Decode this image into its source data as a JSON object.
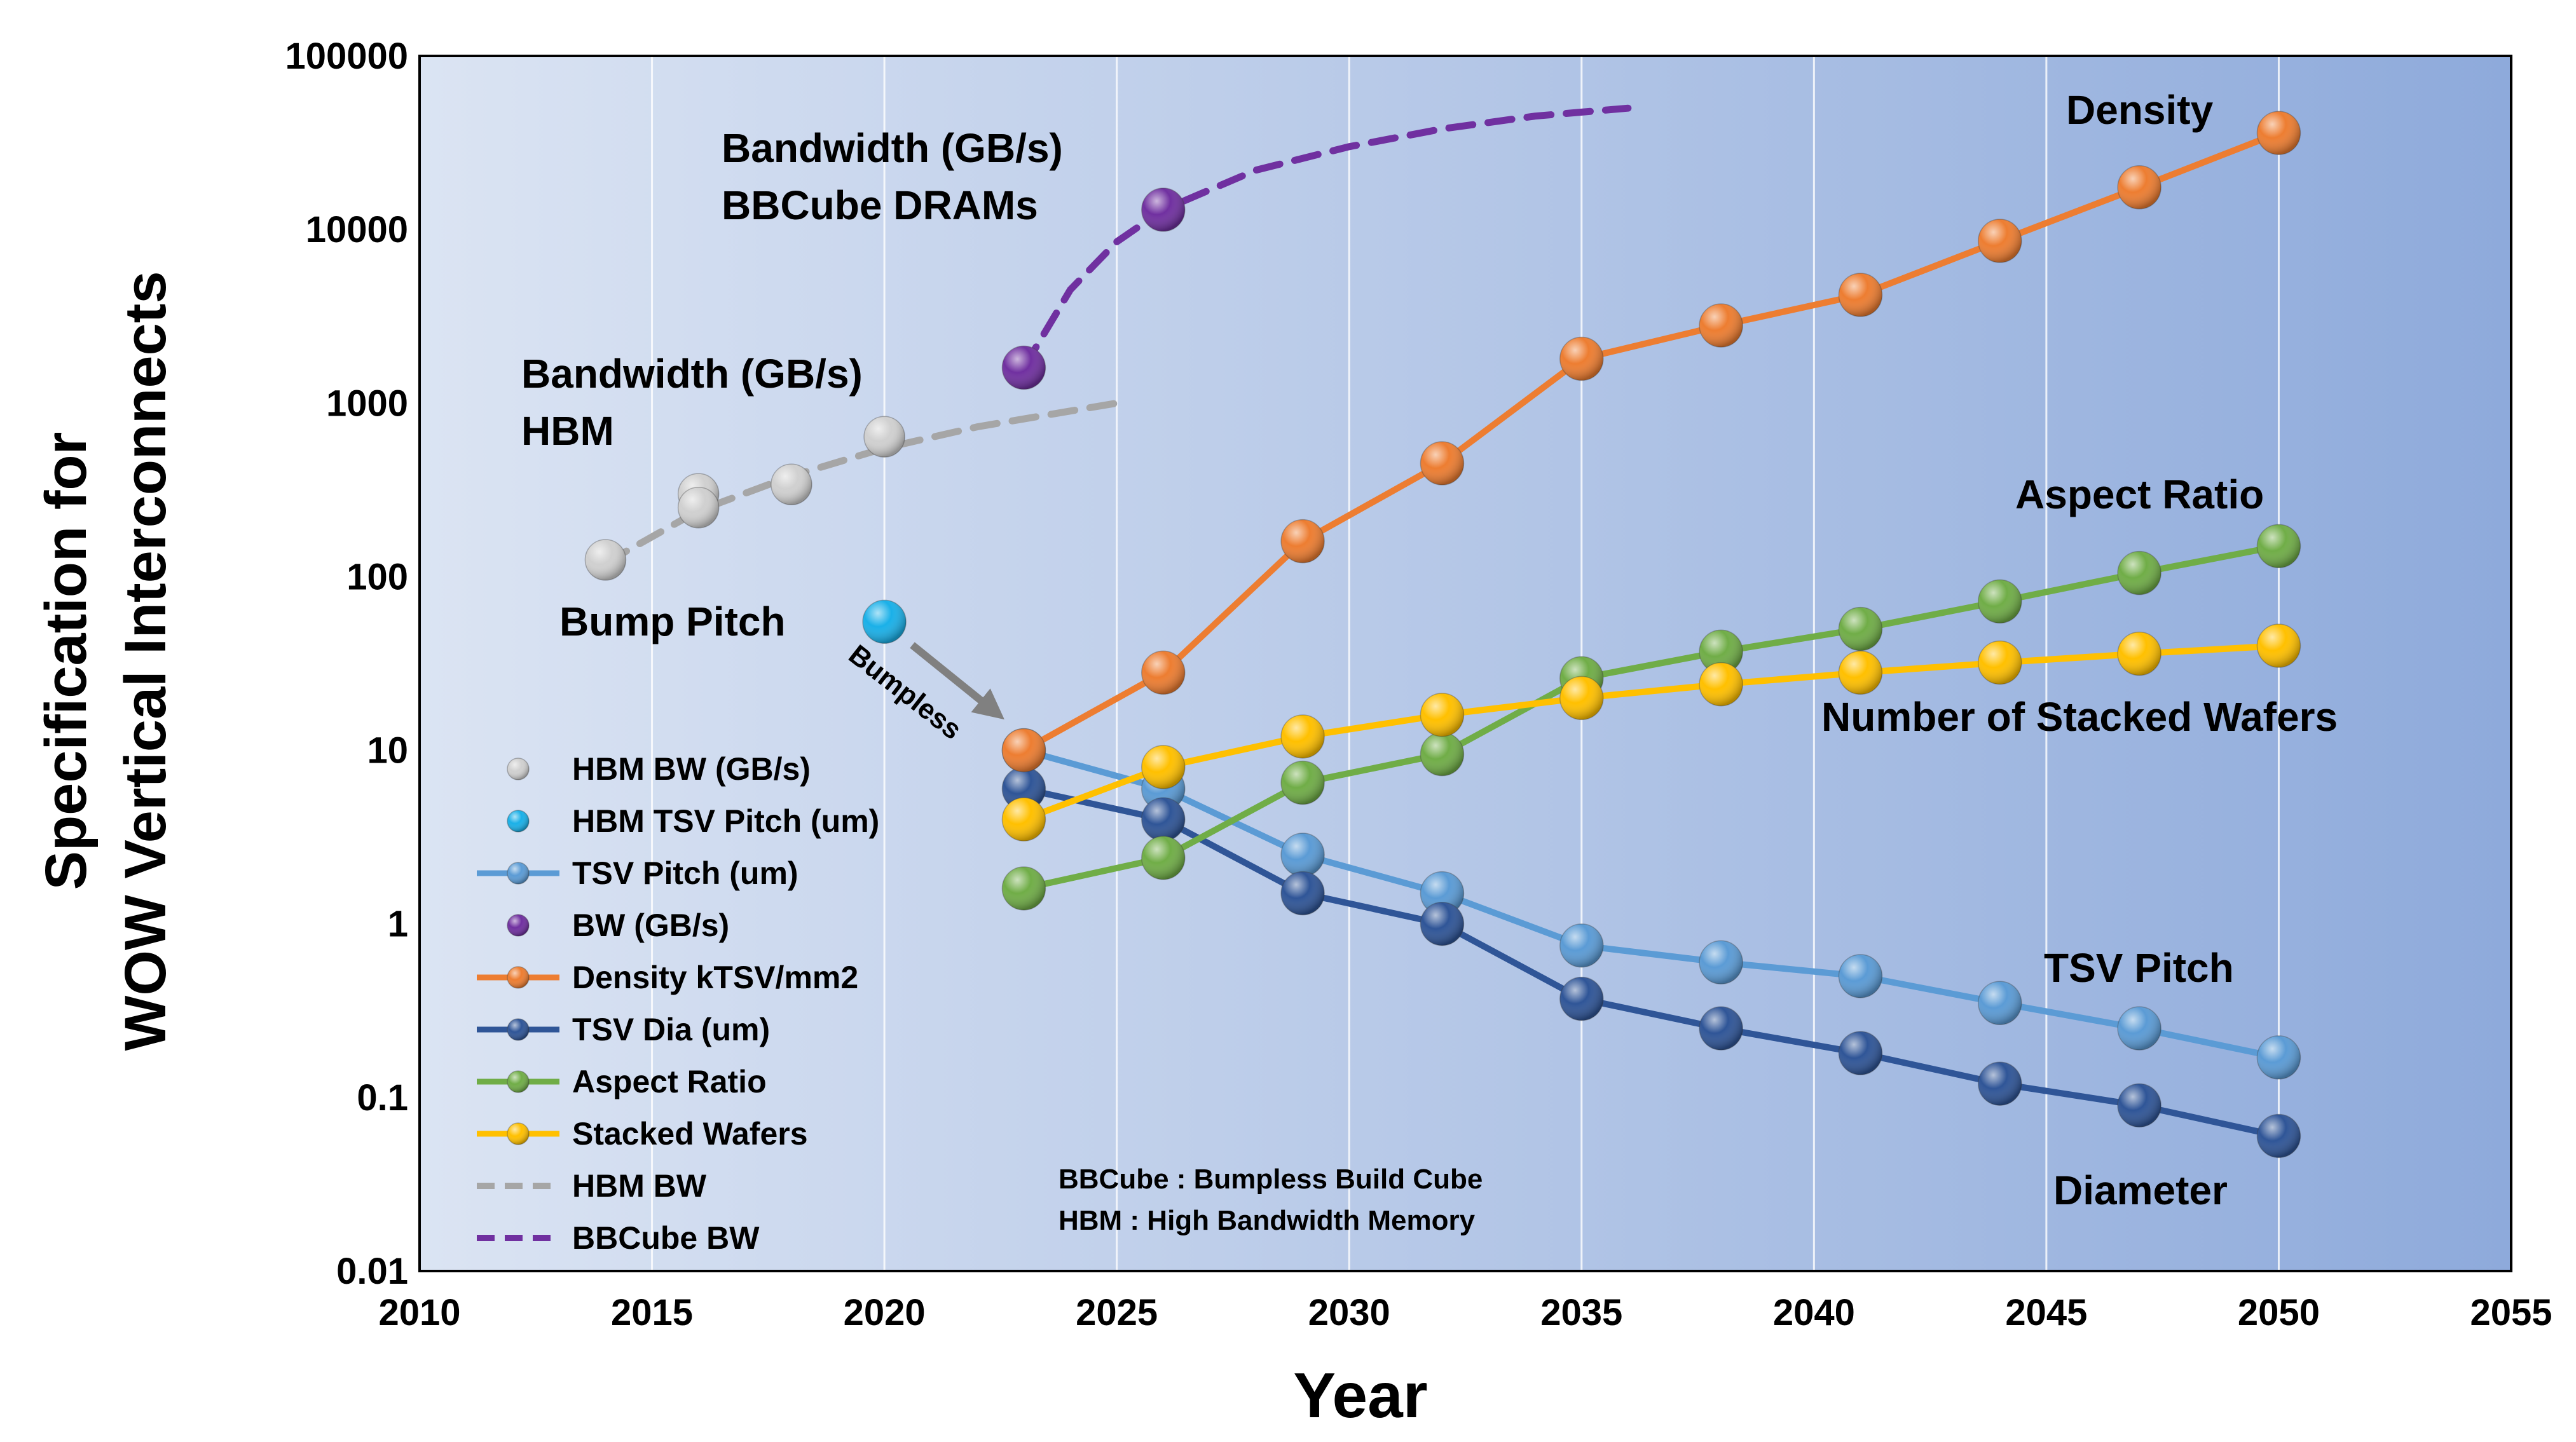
{
  "chart_data": {
    "type": "line",
    "ylabel_line1": "Specification for",
    "ylabel_line2": "WOW Vertical Interconnects",
    "xlabel": "Year",
    "xlim": [
      2010,
      2055
    ],
    "ylim": [
      0.01,
      100000
    ],
    "yscale": "log",
    "x_ticks": [
      "2010",
      "2015",
      "2020",
      "2025",
      "2030",
      "2035",
      "2040",
      "2045",
      "2050",
      "2055"
    ],
    "y_ticks": [
      "0.01",
      "0.1",
      "1",
      "10",
      "100",
      "1000",
      "10000",
      "100000"
    ],
    "grid": "vertical",
    "series": [
      {
        "key": "hbm_bw",
        "name": "HBM BW (GB/s)",
        "style": "markers",
        "color": "#d0d0d0",
        "x": [
          2014,
          2016,
          2016,
          2018,
          2020
        ],
        "values": [
          125,
          300,
          250,
          340,
          640
        ]
      },
      {
        "key": "hbm_tsv_pitch",
        "name": "HBM TSV Pitch (um)",
        "style": "markers",
        "color": "#1ab0e8",
        "x": [
          2020
        ],
        "values": [
          55
        ]
      },
      {
        "key": "tsv_pitch",
        "name": "TSV Pitch (um)",
        "style": "line-markers",
        "color": "#5b9bd5",
        "x": [
          2023,
          2026,
          2029,
          2032,
          2035,
          2038,
          2041,
          2044,
          2047,
          2050
        ],
        "values": [
          10,
          6,
          2.5,
          1.5,
          0.75,
          0.6,
          0.5,
          0.35,
          0.25,
          0.17
        ]
      },
      {
        "key": "bw",
        "name": "BW (GB/s)",
        "style": "markers",
        "color": "#7030a0",
        "x": [
          2023,
          2026
        ],
        "values": [
          1600,
          13000
        ]
      },
      {
        "key": "density",
        "name": "Density kTSV/mm2",
        "style": "line-markers",
        "color": "#ed7d31",
        "x": [
          2023,
          2026,
          2029,
          2032,
          2035,
          2038,
          2041,
          2044,
          2047,
          2050
        ],
        "values": [
          10,
          28,
          160,
          450,
          1800,
          2800,
          4200,
          8600,
          17500,
          36000
        ]
      },
      {
        "key": "tsv_dia",
        "name": "TSV Dia (um)",
        "style": "line-markers",
        "color": "#2f5597",
        "x": [
          2023,
          2026,
          2029,
          2032,
          2035,
          2038,
          2041,
          2044,
          2047,
          2050
        ],
        "values": [
          6,
          4,
          1.5,
          1,
          0.37,
          0.25,
          0.18,
          0.12,
          0.09,
          0.06
        ]
      },
      {
        "key": "aspect_ratio",
        "name": "Aspect Ratio",
        "style": "line-markers",
        "color": "#70ad47",
        "x": [
          2023,
          2026,
          2029,
          2032,
          2035,
          2038,
          2041,
          2044,
          2047,
          2050
        ],
        "values": [
          1.6,
          2.4,
          6.5,
          9.5,
          26,
          37,
          50,
          72,
          105,
          150
        ]
      },
      {
        "key": "stacked_wafers",
        "name": "Stacked Wafers",
        "style": "line-markers",
        "color": "#ffc000",
        "x": [
          2023,
          2026,
          2029,
          2032,
          2035,
          2038,
          2041,
          2044,
          2047,
          2050
        ],
        "values": [
          4,
          8,
          12,
          16,
          20,
          24,
          28,
          32,
          36,
          40
        ]
      },
      {
        "key": "hbm_bw_trend",
        "name": "HBM BW",
        "style": "dashed",
        "color": "#a6a6a6",
        "x": [
          2014,
          2016,
          2018,
          2020,
          2022,
          2025
        ],
        "values": [
          120,
          240,
          380,
          550,
          730,
          1000
        ]
      },
      {
        "key": "bbcube_bw_trend",
        "name": "BBCube BW",
        "style": "dashed",
        "color": "#7030a0",
        "x": [
          2023,
          2024,
          2025,
          2026,
          2028,
          2030,
          2032,
          2034,
          2036
        ],
        "values": [
          1600,
          4500,
          8500,
          13000,
          22000,
          30000,
          38000,
          45000,
          50000
        ]
      }
    ],
    "annotations": {
      "density": "Density",
      "bbcube_line1": "Bandwidth (GB/s)",
      "bbcube_line2": "BBCube DRAMs",
      "hbm_line1": "Bandwidth (GB/s)",
      "hbm_line2": "HBM",
      "aspect_ratio": "Aspect Ratio",
      "bump_pitch": "Bump Pitch",
      "bumpless": "Bumpless",
      "stacked_wafers": "Number of Stacked Wafers",
      "tsv_pitch": "TSV Pitch",
      "diameter": "Diameter",
      "note_line1": "BBCube : Bumpless Build Cube",
      "note_line2": "HBM : High Bandwidth Memory"
    }
  }
}
